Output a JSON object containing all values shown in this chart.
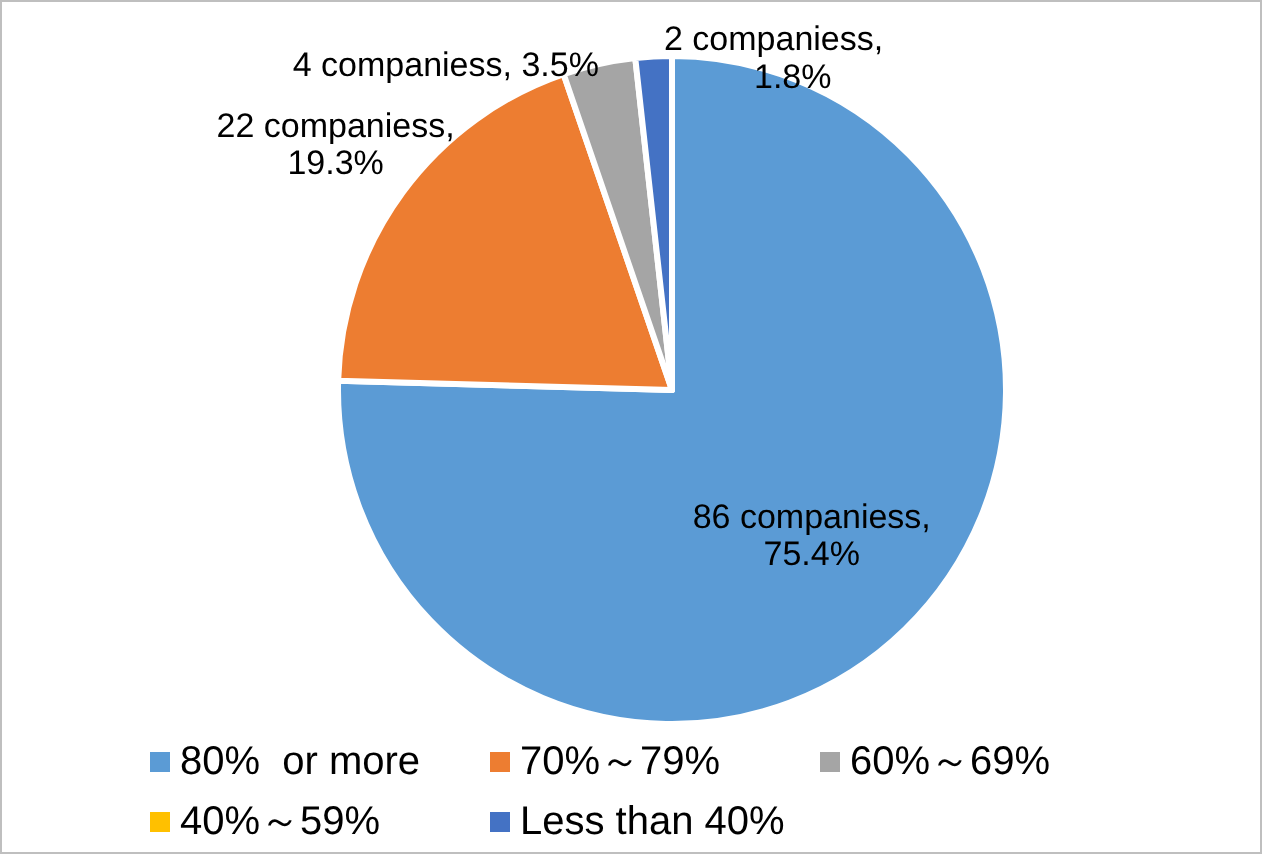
{
  "chart_data": {
    "type": "pie",
    "categories": [
      "80%  or more",
      "70%～79%",
      "60%～69%",
      "40%～59%",
      "Less than 40%"
    ],
    "values": [
      86,
      22,
      4,
      0,
      2
    ],
    "colors": [
      "#5b9bd5",
      "#ed7d31",
      "#a5a5a5",
      "#ffc000",
      "#4472c4"
    ],
    "value_labels": [
      "86 companiess,\n75.4%",
      "22 companiess,\n19.3%",
      "4 companiess, 3.5%",
      null,
      "2 companiess,\n1.8%"
    ],
    "legend": "bottom"
  }
}
